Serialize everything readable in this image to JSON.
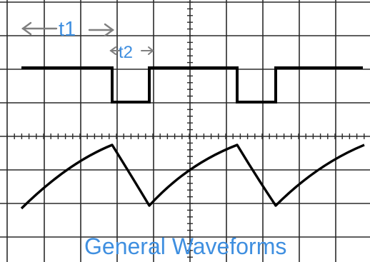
{
  "labels": {
    "t1": "t1",
    "t2": "t2",
    "caption": "General Waveforms"
  },
  "grid": {
    "divisions_x": 10,
    "divisions_y": 7
  },
  "colors": {
    "label": "#3f8fe0",
    "arrow": "#7f7f7f",
    "grid": "#2a2a2a",
    "trace": "#000000",
    "background": "#ffffff"
  },
  "square_wave": {
    "levels": [
      "high",
      "high",
      "low",
      "high",
      "high",
      "low",
      "high",
      "high"
    ],
    "t1_divisions": 2.5,
    "t2_divisions": 1
  },
  "ramp_wave": {
    "shape": "rise-then-fall",
    "cycles": 3
  },
  "icons": {
    "t1_arrow": "left-right-arrow-icon",
    "t2_arrow": "left-right-arrow-icon"
  }
}
